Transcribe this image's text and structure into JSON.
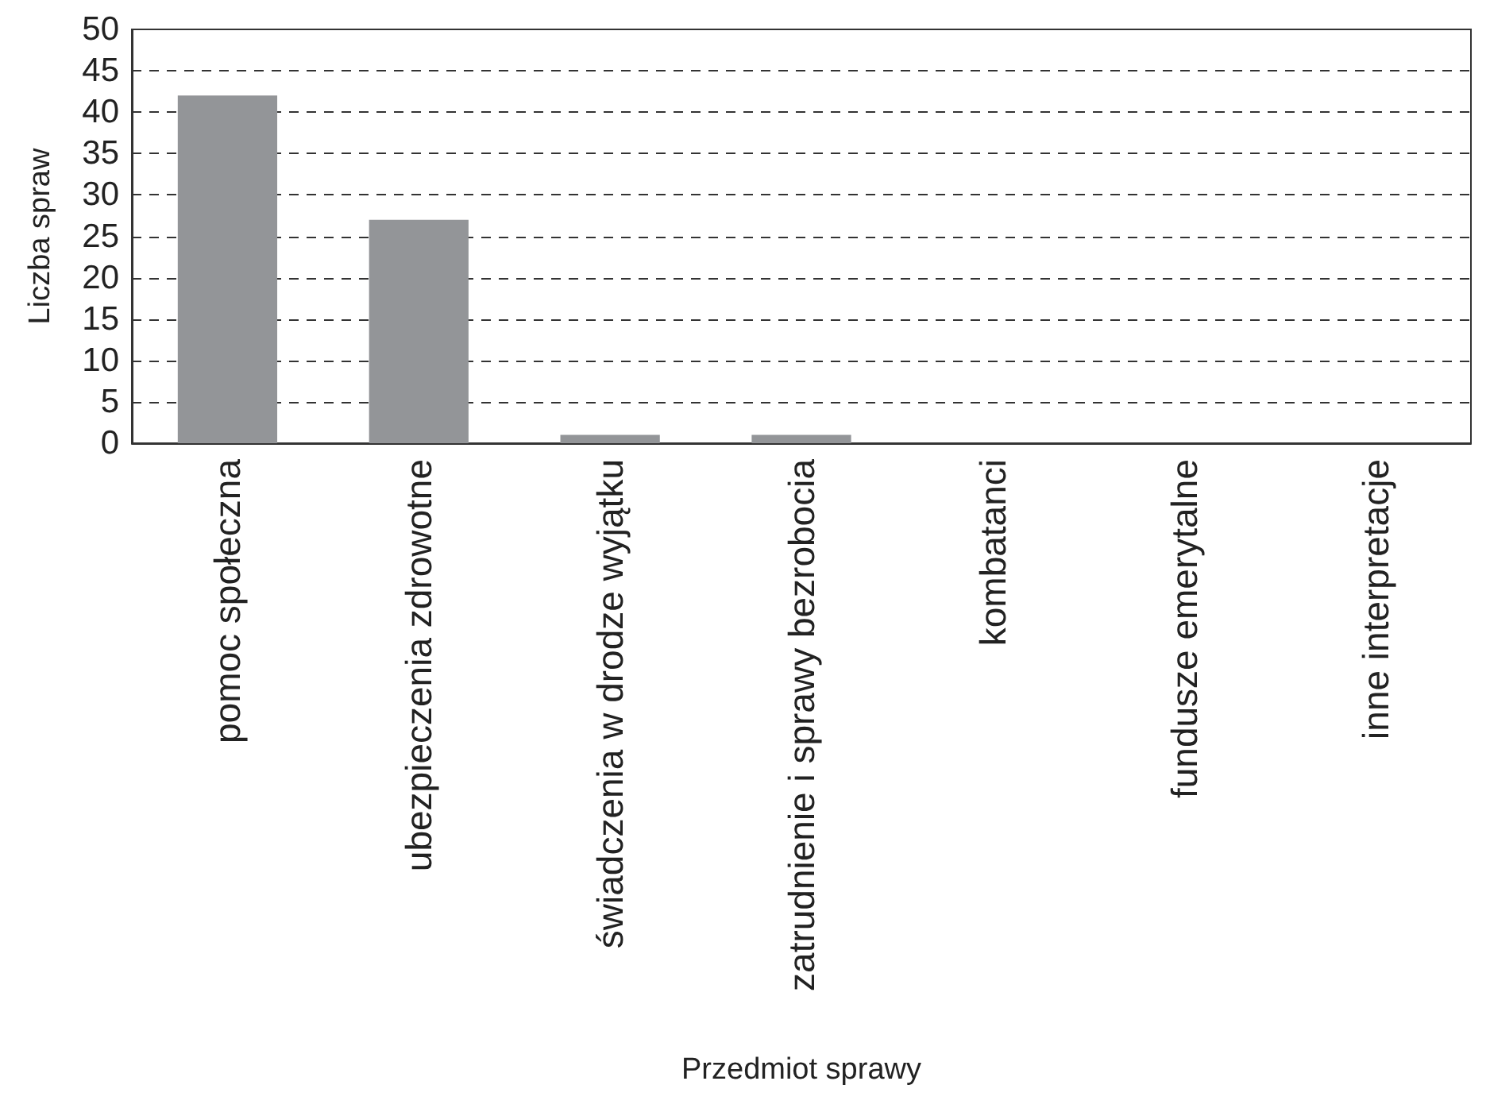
{
  "chart_data": {
    "type": "bar",
    "xlabel": "Przedmiot sprawy",
    "ylabel": "Liczba spraw",
    "categories": [
      "pomoc społeczna",
      "ubezpieczenia zdrowotne",
      "świadczenia w drodze wyjątku",
      "zatrudnienie i sprawy bezrobocia",
      "kombatanci",
      "fundusze emerytalne",
      "inne interpretacje"
    ],
    "values": [
      42,
      27,
      1,
      1,
      0,
      0,
      0
    ],
    "color": "#939598",
    "ylim": [
      0,
      50
    ],
    "yticks": [
      0,
      5,
      10,
      15,
      20,
      25,
      30,
      35,
      40,
      45,
      50
    ],
    "grid": "y"
  }
}
